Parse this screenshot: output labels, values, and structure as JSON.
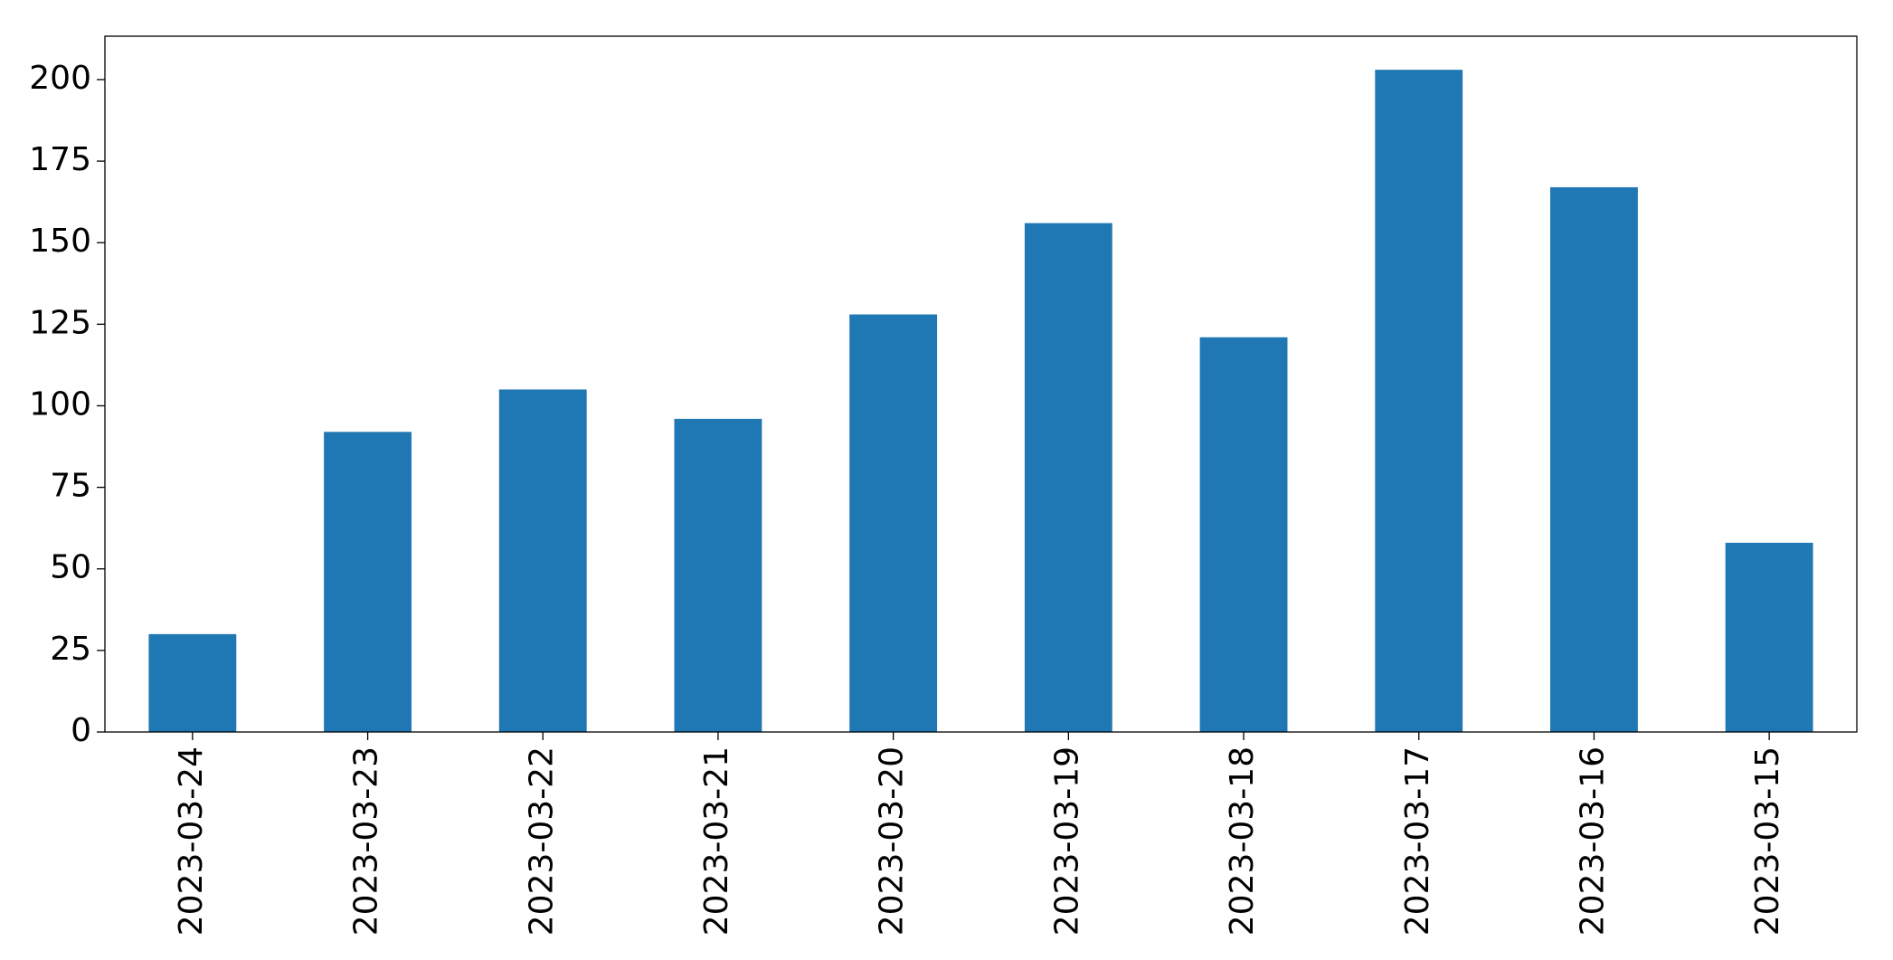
{
  "chart_data": {
    "type": "bar",
    "categories": [
      "2023-03-24",
      "2023-03-23",
      "2023-03-22",
      "2023-03-21",
      "2023-03-20",
      "2023-03-19",
      "2023-03-18",
      "2023-03-17",
      "2023-03-16",
      "2023-03-15"
    ],
    "values": [
      30,
      92,
      105,
      96,
      128,
      156,
      121,
      203,
      167,
      58
    ],
    "color": "#1f77b4",
    "ylim": [
      0,
      213.3
    ],
    "yticks": [
      0,
      25,
      50,
      75,
      100,
      125,
      150,
      175,
      200
    ],
    "grid": false
  }
}
